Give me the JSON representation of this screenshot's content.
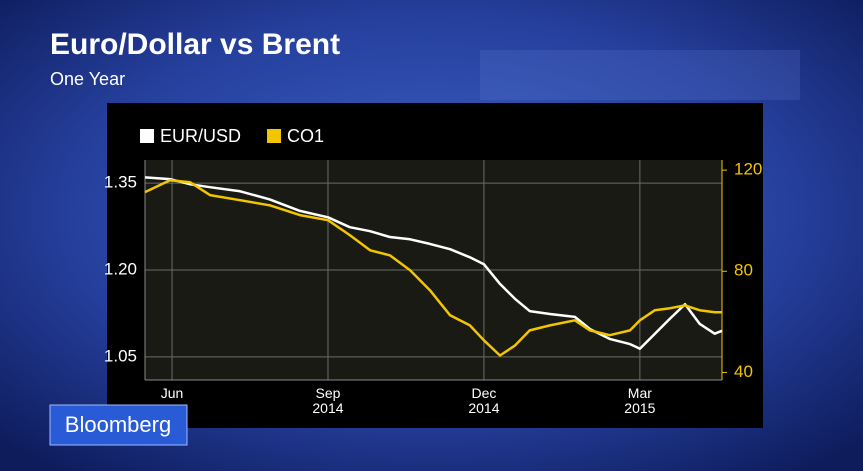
{
  "chart_data": {
    "type": "line",
    "title": "Euro/Dollar vs Brent",
    "subtitle": "One Year",
    "x": [
      -0.52,
      -0.04,
      0.35,
      0.73,
      1.31,
      1.88,
      2.46,
      3.0,
      3.42,
      3.81,
      4.19,
      4.58,
      4.96,
      5.35,
      5.73,
      6.0,
      6.31,
      6.6,
      6.88,
      7.27,
      7.75,
      8.04,
      8.42,
      8.81,
      9.0,
      9.29,
      9.58,
      9.87,
      10.15,
      10.44,
      10.58
    ],
    "xlim": [
      -0.52,
      10.58
    ],
    "xticks": [
      {
        "value": 0,
        "label": "Jun"
      },
      {
        "value": 3,
        "label": "Sep 2014"
      },
      {
        "value": 6,
        "label": "Dec 2014"
      },
      {
        "value": 9,
        "label": "Mar 2015"
      }
    ],
    "series": [
      {
        "name": "EUR/USD",
        "color": "#ffffff",
        "values": [
          1.36,
          1.357,
          1.348,
          1.343,
          1.336,
          1.322,
          1.302,
          1.291,
          1.274,
          1.267,
          1.257,
          1.253,
          1.245,
          1.236,
          1.222,
          1.21,
          1.176,
          1.15,
          1.129,
          1.124,
          1.119,
          1.098,
          1.081,
          1.072,
          1.064,
          1.09,
          1.116,
          1.141,
          1.107,
          1.09,
          1.095
        ]
      },
      {
        "name": "CO1",
        "color": "#f2c500",
        "axis": "y2",
        "values": [
          111.3,
          116.0,
          115.2,
          110.1,
          108.1,
          106.1,
          102.2,
          100.2,
          94.3,
          88.3,
          86.3,
          80.4,
          72.5,
          62.6,
          58.6,
          52.7,
          46.7,
          50.7,
          56.6,
          58.6,
          60.6,
          56.6,
          54.7,
          56.6,
          60.6,
          64.6,
          65.4,
          66.5,
          64.6,
          63.8,
          63.8
        ]
      }
    ],
    "ylim": [
      1.01,
      1.39
    ],
    "yticks": [
      1.05,
      {
        "value": 1.2,
        "label": "1.20"
      },
      1.35
    ],
    "y2lim": [
      37,
      124
    ],
    "y2ticks": [
      40,
      80,
      120
    ],
    "grid": true
  },
  "source": "Bloomberg"
}
